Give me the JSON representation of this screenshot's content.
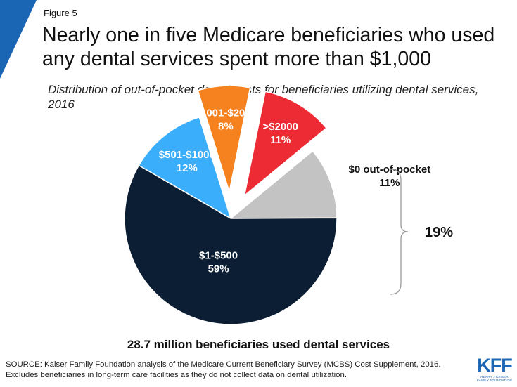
{
  "header": {
    "figure_label": "Figure 5",
    "title": "Nearly one in five Medicare beneficiaries who used any dental services spent more than $1,000",
    "subtitle": "Distribution of out-of-pocket dental costs for beneficiaries utilizing dental services, 2016"
  },
  "chart_data": {
    "type": "pie",
    "slices": [
      {
        "label": "$501-$1000",
        "value": 12,
        "value_label": "12%",
        "color": "#3aaefa",
        "exploded": false
      },
      {
        "label": "$1001-$2000",
        "value": 8,
        "value_label": "8%",
        "color": "#f5811f",
        "exploded": true
      },
      {
        "label": ">$2000",
        "value": 11,
        "value_label": "11%",
        "color": "#ec2b35",
        "exploded": true
      },
      {
        "label": "$0 out-of-pocket",
        "value": 11,
        "value_label": "11%",
        "color": "#c3c3c3",
        "exploded": false
      },
      {
        "label": "$1-$500",
        "value": 59,
        "value_label": "59%",
        "color": "#0c1e33",
        "exploded": false
      }
    ],
    "bracket_label": "19%"
  },
  "caption": "28.7 million beneficiaries used dental services",
  "source": {
    "line1": "SOURCE: Kaiser Family Foundation analysis of the Medicare Current Beneficiary Survey (MCBS) Cost Supplement, 2016.",
    "line2": "Excludes beneficiaries in long-term care facilities as they do not collect data on dental utilization."
  },
  "logo": {
    "text": "KFF",
    "subtext": "HENRY J KAISER FAMILY FOUNDATION",
    "color": "#1a66b4"
  }
}
